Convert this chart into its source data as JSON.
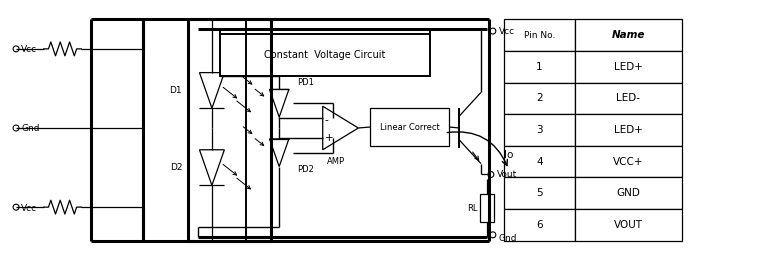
{
  "bg_color": "#ffffff",
  "table_headers": [
    "Pin No.",
    "Name"
  ],
  "table_rows": [
    [
      "1",
      "LED+"
    ],
    [
      "2",
      "LED-"
    ],
    [
      "3",
      "LED+"
    ],
    [
      "4",
      "VCC+"
    ],
    [
      "5",
      "GND"
    ],
    [
      "6",
      "VOUT"
    ]
  ],
  "lw_thick": 2.2,
  "lw_medium": 1.4,
  "lw_thin": 0.9,
  "font_size": 7.5,
  "label_font_size": 6.5
}
